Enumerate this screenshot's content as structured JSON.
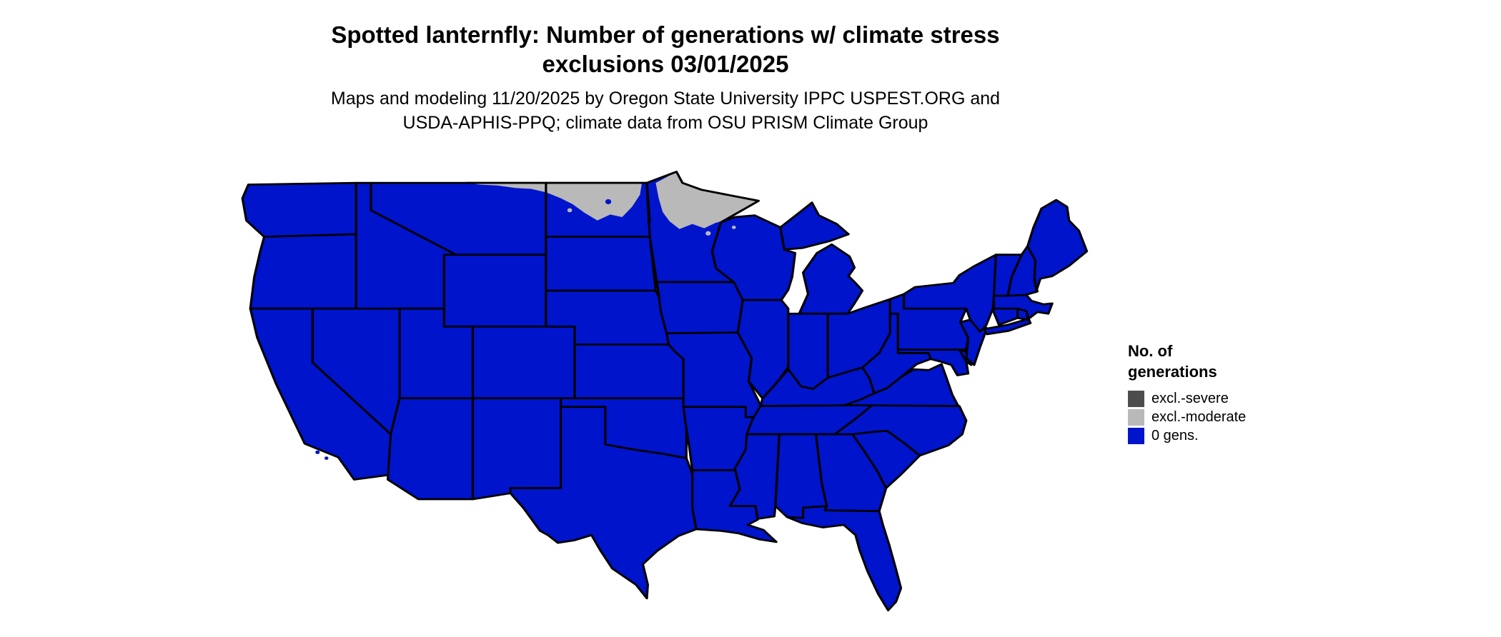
{
  "header": {
    "title_line1": "Spotted lanternfly: Number of generations w/ climate stress",
    "title_line2": "exclusions 03/01/2025",
    "subtitle_line1": "Maps and modeling 11/20/2025 by Oregon State University IPPC USPEST.ORG and",
    "subtitle_line2": "USDA-APHIS-PPQ; climate data from OSU PRISM Climate Group"
  },
  "legend": {
    "title_line1": "No. of",
    "title_line2": "generations",
    "items": [
      {
        "label": "excl.-severe",
        "color": "#4d4d4d"
      },
      {
        "label": "excl.-moderate",
        "color": "#b9b9b9"
      },
      {
        "label": "0 gens.",
        "color": "#0014cc"
      }
    ]
  },
  "map": {
    "background": "#ffffff",
    "state_fill": "#0014cc",
    "state_border": "#000000",
    "excluded_moderate_fill": "#b9b9b9",
    "excluded_severe_fill": "#4d4d4d"
  }
}
